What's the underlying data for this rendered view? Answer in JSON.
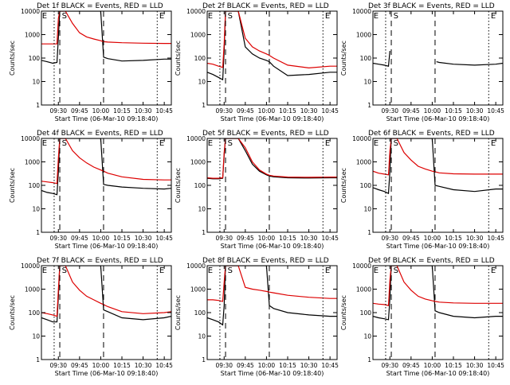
{
  "colors": {
    "events": "#000000",
    "lld": "#dd0000",
    "axis": "#000000",
    "background": "#ffffff"
  },
  "x_ticks": [
    "09:30",
    "09:45",
    "10:00",
    "10:15",
    "10:30",
    "10:45"
  ],
  "x_label": "Start Time (06-Mar-10 09:18:40)",
  "y_label": "Counts/sec",
  "y_ticks": [
    "1",
    "10",
    "100",
    "1000",
    "10000"
  ],
  "chart_data": [
    {
      "type": "line",
      "title": "Det 1f BLACK = Events, RED = LLD",
      "x": [
        "09:18",
        "09:22",
        "09:26",
        "09:29",
        "09:30",
        "09:31",
        "09:33",
        "09:35",
        "09:40",
        "09:45",
        "09:50",
        "09:55",
        "10:00",
        "10:02",
        "10:05",
        "10:15",
        "10:30",
        "10:45",
        "10:50"
      ],
      "yscale": "log",
      "ylim": [
        1,
        10000
      ],
      "markers": {
        "vlines": [
          {
            "x": "09:27",
            "style": "dotted"
          },
          {
            "x": "09:31",
            "style": "dashed"
          },
          {
            "x": "10:02",
            "style": "dashed"
          },
          {
            "x": "10:40",
            "style": "dotted"
          }
        ],
        "letters": [
          {
            "x": "09:19",
            "label": "E"
          },
          {
            "x": "09:33",
            "label": "S"
          },
          {
            "x": "10:42",
            "label": "E"
          }
        ]
      },
      "series": [
        {
          "name": "Events",
          "color": "#000000",
          "values": [
            80,
            70,
            60,
            65,
            800,
            10000,
            10000,
            10000,
            10000,
            10000,
            10000,
            10000,
            10000,
            110,
            95,
            75,
            80,
            90,
            90
          ]
        },
        {
          "name": "LLD",
          "color": "#dd0000",
          "values": [
            400,
            400,
            400,
            400,
            5000,
            10000,
            10000,
            10000,
            3000,
            1200,
            800,
            650,
            550,
            500,
            480,
            450,
            430,
            420,
            420
          ]
        }
      ]
    },
    {
      "type": "line",
      "title": "Det 2f BLACK = Events, RED = LLD",
      "x": [
        "09:18",
        "09:22",
        "09:26",
        "09:29",
        "09:30",
        "09:31",
        "09:33",
        "09:35",
        "09:40",
        "09:45",
        "09:50",
        "09:55",
        "10:00",
        "10:02",
        "10:05",
        "10:15",
        "10:30",
        "10:45",
        "10:50"
      ],
      "yscale": "log",
      "ylim": [
        1,
        10000
      ],
      "markers": {
        "vlines": [
          {
            "x": "09:27",
            "style": "dotted"
          },
          {
            "x": "09:31",
            "style": "dashed"
          },
          {
            "x": "10:02",
            "style": "dashed"
          },
          {
            "x": "10:40",
            "style": "dotted"
          }
        ],
        "letters": [
          {
            "x": "09:19",
            "label": "E"
          },
          {
            "x": "09:33",
            "label": "S"
          },
          {
            "x": "10:42",
            "label": "E"
          }
        ]
      },
      "series": [
        {
          "name": "Events",
          "color": "#000000",
          "values": [
            25,
            20,
            15,
            12,
            200,
            10000,
            10000,
            10000,
            10000,
            300,
            150,
            100,
            80,
            70,
            45,
            18,
            20,
            25,
            25
          ]
        },
        {
          "name": "LLD",
          "color": "#dd0000",
          "values": [
            60,
            55,
            45,
            40,
            400,
            10000,
            10000,
            10000,
            10000,
            700,
            300,
            200,
            150,
            130,
            100,
            50,
            38,
            45,
            45
          ]
        }
      ]
    },
    {
      "type": "line",
      "title": "Det 3f BLACK = Events, RED = LLD",
      "x": [
        "09:18",
        "09:22",
        "09:26",
        "09:29",
        "09:30",
        "09:31",
        "10:03",
        "10:05",
        "10:15",
        "10:30",
        "10:45",
        "10:50"
      ],
      "yscale": "log",
      "ylim": [
        1,
        10000
      ],
      "markers": {
        "vlines": [
          {
            "x": "09:27",
            "style": "dotted"
          },
          {
            "x": "09:31",
            "style": "dashed"
          },
          {
            "x": "10:02",
            "style": "dashed"
          },
          {
            "x": "10:40",
            "style": "dotted"
          }
        ],
        "letters": [
          {
            "x": "09:19",
            "label": "E"
          },
          {
            "x": "09:33",
            "label": "S"
          },
          {
            "x": "10:42",
            "label": "E"
          }
        ]
      },
      "series": [
        {
          "name": "Events",
          "color": "#000000",
          "values": [
            60,
            55,
            50,
            45,
            200,
            null,
            70,
            65,
            55,
            50,
            55,
            60
          ]
        },
        {
          "name": "LLD",
          "color": "#dd0000",
          "values": [
            null,
            null,
            null,
            null,
            null,
            null,
            null,
            null,
            null,
            null,
            null,
            null
          ]
        }
      ]
    },
    {
      "type": "line",
      "title": "Det 4f BLACK = Events, RED = LLD",
      "x": [
        "09:18",
        "09:22",
        "09:26",
        "09:29",
        "09:30",
        "09:31",
        "09:33",
        "09:35",
        "09:40",
        "09:45",
        "09:50",
        "09:55",
        "10:00",
        "10:02",
        "10:05",
        "10:15",
        "10:30",
        "10:45",
        "10:50"
      ],
      "yscale": "log",
      "ylim": [
        1,
        10000
      ],
      "markers": {
        "vlines": [
          {
            "x": "09:27",
            "style": "dotted"
          },
          {
            "x": "09:31",
            "style": "dashed"
          },
          {
            "x": "10:02",
            "style": "dashed"
          },
          {
            "x": "10:40",
            "style": "dotted"
          }
        ],
        "letters": [
          {
            "x": "09:19",
            "label": "E"
          },
          {
            "x": "09:33",
            "label": "S"
          },
          {
            "x": "10:42",
            "label": "E"
          }
        ]
      },
      "series": [
        {
          "name": "Events",
          "color": "#000000",
          "values": [
            60,
            50,
            45,
            40,
            400,
            10000,
            10000,
            10000,
            10000,
            10000,
            10000,
            10000,
            10000,
            110,
            100,
            85,
            75,
            70,
            75
          ]
        },
        {
          "name": "LLD",
          "color": "#dd0000",
          "values": [
            150,
            140,
            130,
            120,
            1500,
            10000,
            10000,
            10000,
            3000,
            1500,
            900,
            600,
            450,
            400,
            330,
            230,
            180,
            170,
            170
          ]
        }
      ]
    },
    {
      "type": "line",
      "title": "Det 5f BLACK = Events, RED = LLD",
      "x": [
        "09:18",
        "09:22",
        "09:26",
        "09:29",
        "09:30",
        "09:31",
        "09:33",
        "09:35",
        "09:40",
        "09:45",
        "09:50",
        "09:55",
        "10:00",
        "10:02",
        "10:05",
        "10:15",
        "10:30",
        "10:45",
        "10:50"
      ],
      "yscale": "log",
      "ylim": [
        1,
        10000
      ],
      "markers": {
        "vlines": [
          {
            "x": "09:27",
            "style": "dotted"
          },
          {
            "x": "09:31",
            "style": "dashed"
          },
          {
            "x": "10:02",
            "style": "dashed"
          },
          {
            "x": "10:40",
            "style": "dotted"
          }
        ],
        "letters": [
          {
            "x": "09:19",
            "label": "E"
          },
          {
            "x": "09:33",
            "label": "S"
          },
          {
            "x": "10:42",
            "label": "E"
          }
        ]
      },
      "series": [
        {
          "name": "Events",
          "color": "#000000",
          "values": [
            200,
            190,
            190,
            200,
            2000,
            10000,
            10000,
            10000,
            10000,
            3000,
            800,
            400,
            280,
            250,
            230,
            210,
            205,
            210,
            210
          ]
        },
        {
          "name": "LLD",
          "color": "#dd0000",
          "values": [
            210,
            200,
            200,
            210,
            2500,
            10000,
            10000,
            10000,
            10000,
            4000,
            1000,
            450,
            300,
            270,
            250,
            225,
            220,
            225,
            225
          ]
        }
      ]
    },
    {
      "type": "line",
      "title": "Det 6f BLACK = Events, RED = LLD",
      "x": [
        "09:18",
        "09:22",
        "09:26",
        "09:29",
        "09:30",
        "09:31",
        "09:33",
        "09:35",
        "09:40",
        "09:45",
        "09:50",
        "09:55",
        "10:00",
        "10:02",
        "10:05",
        "10:15",
        "10:30",
        "10:45",
        "10:50"
      ],
      "yscale": "log",
      "ylim": [
        1,
        10000
      ],
      "markers": {
        "vlines": [
          {
            "x": "09:27",
            "style": "dotted"
          },
          {
            "x": "09:31",
            "style": "dashed"
          },
          {
            "x": "10:02",
            "style": "dashed"
          },
          {
            "x": "10:40",
            "style": "dotted"
          }
        ],
        "letters": [
          {
            "x": "09:19",
            "label": "E"
          },
          {
            "x": "09:33",
            "label": "S"
          },
          {
            "x": "10:42",
            "label": "E"
          }
        ]
      },
      "series": [
        {
          "name": "Events",
          "color": "#000000",
          "values": [
            80,
            65,
            55,
            45,
            400,
            10000,
            10000,
            10000,
            10000,
            10000,
            10000,
            10000,
            10000,
            100,
            90,
            65,
            55,
            70,
            70
          ]
        },
        {
          "name": "LLD",
          "color": "#dd0000",
          "values": [
            400,
            330,
            300,
            280,
            3000,
            10000,
            10000,
            10000,
            2500,
            1200,
            650,
            500,
            400,
            380,
            340,
            310,
            300,
            300,
            300
          ]
        }
      ]
    },
    {
      "type": "line",
      "title": "Det 7f BLACK = Events, RED = LLD",
      "x": [
        "09:18",
        "09:22",
        "09:26",
        "09:29",
        "09:30",
        "09:31",
        "09:33",
        "09:35",
        "09:40",
        "09:45",
        "09:50",
        "09:55",
        "10:00",
        "10:02",
        "10:05",
        "10:15",
        "10:30",
        "10:45",
        "10:50"
      ],
      "yscale": "log",
      "ylim": [
        1,
        10000
      ],
      "markers": {
        "vlines": [
          {
            "x": "09:27",
            "style": "dotted"
          },
          {
            "x": "09:31",
            "style": "dashed"
          },
          {
            "x": "10:02",
            "style": "dashed"
          },
          {
            "x": "10:40",
            "style": "dotted"
          }
        ],
        "letters": [
          {
            "x": "09:19",
            "label": "E"
          },
          {
            "x": "09:33",
            "label": "S"
          },
          {
            "x": "10:42",
            "label": "E"
          }
        ]
      },
      "series": [
        {
          "name": "Events",
          "color": "#000000",
          "values": [
            60,
            50,
            40,
            40,
            500,
            10000,
            10000,
            10000,
            10000,
            10000,
            10000,
            10000,
            10000,
            130,
            110,
            60,
            50,
            60,
            70
          ]
        },
        {
          "name": "LLD",
          "color": "#dd0000",
          "values": [
            100,
            90,
            80,
            70,
            1000,
            10000,
            10000,
            10000,
            2000,
            900,
            500,
            350,
            250,
            220,
            180,
            110,
            90,
            100,
            110
          ]
        }
      ]
    },
    {
      "type": "line",
      "title": "Det 8f BLACK = Events, RED = LLD",
      "x": [
        "09:18",
        "09:22",
        "09:26",
        "09:29",
        "09:30",
        "09:31",
        "09:33",
        "09:35",
        "09:40",
        "09:45",
        "09:50",
        "09:55",
        "10:00",
        "10:02",
        "10:05",
        "10:15",
        "10:30",
        "10:45",
        "10:50"
      ],
      "yscale": "log",
      "ylim": [
        1,
        10000
      ],
      "markers": {
        "vlines": [
          {
            "x": "09:27",
            "style": "dotted"
          },
          {
            "x": "09:31",
            "style": "dashed"
          },
          {
            "x": "10:02",
            "style": "dashed"
          },
          {
            "x": "10:40",
            "style": "dotted"
          }
        ],
        "letters": [
          {
            "x": "09:19",
            "label": "E"
          },
          {
            "x": "09:33",
            "label": "S"
          },
          {
            "x": "10:42",
            "label": "E"
          }
        ]
      },
      "series": [
        {
          "name": "Events",
          "color": "#000000",
          "values": [
            60,
            50,
            40,
            30,
            200,
            10000,
            10000,
            10000,
            10000,
            10000,
            10000,
            10000,
            10000,
            200,
            150,
            100,
            80,
            70,
            70
          ]
        },
        {
          "name": "LLD",
          "color": "#dd0000",
          "values": [
            350,
            350,
            330,
            300,
            2000,
            10000,
            10000,
            10000,
            10000,
            1200,
            1000,
            900,
            800,
            750,
            700,
            550,
            450,
            400,
            400
          ]
        }
      ]
    },
    {
      "type": "line",
      "title": "Det 9f BLACK = Events, RED = LLD",
      "x": [
        "09:18",
        "09:22",
        "09:26",
        "09:29",
        "09:30",
        "09:31",
        "09:33",
        "09:35",
        "09:40",
        "09:45",
        "09:50",
        "09:55",
        "10:00",
        "10:02",
        "10:05",
        "10:15",
        "10:30",
        "10:45",
        "10:50"
      ],
      "yscale": "log",
      "ylim": [
        1,
        10000
      ],
      "markers": {
        "vlines": [
          {
            "x": "09:27",
            "style": "dotted"
          },
          {
            "x": "09:31",
            "style": "dashed"
          },
          {
            "x": "10:02",
            "style": "dashed"
          },
          {
            "x": "10:40",
            "style": "dotted"
          }
        ],
        "letters": [
          {
            "x": "09:19",
            "label": "E"
          },
          {
            "x": "09:33",
            "label": "S"
          },
          {
            "x": "10:42",
            "label": "E"
          }
        ]
      },
      "series": [
        {
          "name": "Events",
          "color": "#000000",
          "values": [
            70,
            60,
            55,
            50,
            400,
            10000,
            10000,
            10000,
            10000,
            10000,
            10000,
            10000,
            10000,
            120,
            100,
            70,
            60,
            70,
            70
          ]
        },
        {
          "name": "LLD",
          "color": "#dd0000",
          "values": [
            250,
            230,
            220,
            200,
            2500,
            10000,
            10000,
            10000,
            2000,
            900,
            500,
            380,
            320,
            300,
            280,
            260,
            250,
            250,
            250
          ]
        }
      ]
    }
  ]
}
